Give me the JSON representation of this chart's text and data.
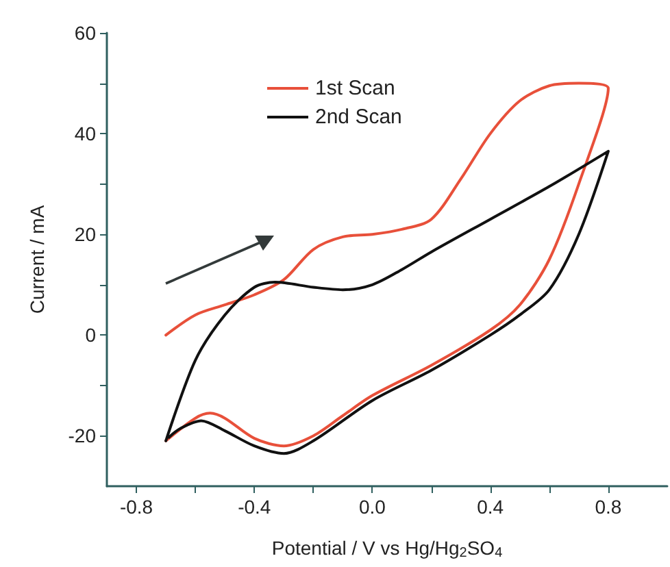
{
  "chart_data": {
    "type": "line",
    "xlabel": "Potential / V vs Hg/Hg$_{2}$SO$_{4}$",
    "ylabel": "Current / mA",
    "xlim": [
      -0.9,
      1.0
    ],
    "xticks": [
      {
        "value": -0.8,
        "label": "-0.8"
      },
      {
        "value": -0.6,
        "label": null
      },
      {
        "value": -0.4,
        "label": "-0.4"
      },
      {
        "value": -0.2,
        "label": null
      },
      {
        "value": 0,
        "label": "0.0"
      },
      {
        "value": 0.2,
        "label": null
      },
      {
        "value": 0.4,
        "label": "0.4"
      },
      {
        "value": 0.6,
        "label": null
      },
      {
        "value": 0.8,
        "label": "0.8"
      }
    ],
    "ylim": [
      -30,
      60
    ],
    "yticks": [
      {
        "value": -20,
        "label": "-20"
      },
      {
        "value": -10,
        "label": null
      },
      0,
      {
        "value": 10,
        "label": null
      },
      20,
      {
        "value": 30,
        "label": null
      },
      40,
      {
        "value": 50,
        "label": null
      },
      60
    ],
    "grid": false,
    "legend": "top",
    "marker": "none",
    "line_style": "solid",
    "series": [
      {
        "name": "1st Scan",
        "color": "#e8503a",
        "x": [
          -0.7,
          -0.6,
          -0.5,
          -0.4,
          -0.3,
          -0.2,
          -0.1,
          0.0,
          0.1,
          0.2,
          0.3,
          0.4,
          0.5,
          0.6,
          0.7,
          0.8,
          0.7,
          0.6,
          0.5,
          0.4,
          0.2,
          0.0,
          -0.1,
          -0.2,
          -0.3,
          -0.4,
          -0.5,
          -0.55,
          -0.6,
          -0.7
        ],
        "values": [
          0,
          4,
          6,
          8,
          11,
          17,
          19.5,
          20,
          21,
          23,
          31,
          40,
          46.5,
          49.5,
          50,
          49,
          30,
          15,
          6,
          1,
          -6,
          -12,
          -16,
          -20,
          -22,
          -20.5,
          -16.5,
          -15.5,
          -16.5,
          -21
        ]
      },
      {
        "name": "2nd Scan",
        "color": "#111111",
        "x": [
          -0.7,
          -0.6,
          -0.5,
          -0.4,
          -0.33,
          -0.2,
          -0.1,
          0.0,
          0.1,
          0.2,
          0.4,
          0.6,
          0.8,
          0.7,
          0.6,
          0.5,
          0.4,
          0.2,
          0.0,
          -0.2,
          -0.3,
          -0.4,
          -0.5,
          -0.58,
          -0.65,
          -0.69
        ],
        "values": [
          -21,
          -5,
          4,
          9.5,
          10.5,
          9.5,
          9,
          10,
          13,
          16.5,
          23,
          29.5,
          36.5,
          20,
          9,
          4,
          0,
          -7,
          -13,
          -21,
          -23.5,
          -22,
          -19,
          -17,
          -18.5,
          -20.3
        ]
      }
    ]
  }
}
